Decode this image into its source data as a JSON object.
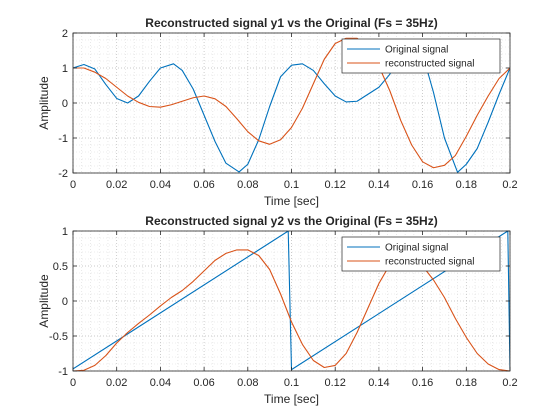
{
  "chart_data": [
    {
      "type": "line",
      "title": "Reconstructed signal y1 vs the Original (Fs = 35Hz)",
      "xlabel": "Time [sec]",
      "ylabel": "Amplitude",
      "xlim": [
        0,
        0.2
      ],
      "ylim": [
        -2,
        2
      ],
      "xticks": [
        0,
        0.02,
        0.04,
        0.06,
        0.08,
        0.1,
        0.12,
        0.14,
        0.16,
        0.18,
        0.2
      ],
      "xtick_labels": [
        "0",
        "0.02",
        "0.04",
        "0.06",
        "0.08",
        "0.1",
        "0.12",
        "0.14",
        "0.16",
        "0.18",
        "0.2"
      ],
      "yticks": [
        -2,
        -1,
        0,
        1,
        2
      ],
      "ytick_labels": [
        "-2",
        "-1",
        "0",
        "1",
        "2"
      ],
      "grid": "on (major + minor, dotted)",
      "legend_location": "top-right",
      "series": [
        {
          "name": "Original signal",
          "color": "#0072BD",
          "x": [
            0,
            0.005,
            0.01,
            0.015,
            0.02,
            0.025,
            0.03,
            0.035,
            0.04,
            0.046,
            0.05,
            0.055,
            0.06,
            0.065,
            0.07,
            0.076,
            0.08,
            0.085,
            0.09,
            0.095,
            0.1,
            0.105,
            0.11,
            0.115,
            0.12,
            0.125,
            0.13,
            0.135,
            0.14,
            0.145,
            0.15,
            0.155,
            0.16,
            0.165,
            0.17,
            0.176,
            0.18,
            0.185,
            0.19,
            0.195,
            0.2
          ],
          "y": [
            1.0,
            1.1,
            0.97,
            0.53,
            0.13,
            0.0,
            0.2,
            0.62,
            1.0,
            1.12,
            0.93,
            0.4,
            -0.35,
            -1.1,
            -1.72,
            -1.97,
            -1.75,
            -1.05,
            -0.1,
            0.75,
            1.08,
            1.12,
            0.93,
            0.55,
            0.2,
            0.03,
            0.05,
            0.25,
            0.45,
            0.82,
            1.6,
            1.78,
            1.4,
            0.3,
            -1.0,
            -1.98,
            -1.75,
            -1.3,
            -0.55,
            0.25,
            1.0
          ]
        },
        {
          "name": "reconstructed signal",
          "color": "#D95319",
          "x": [
            0,
            0.005,
            0.01,
            0.015,
            0.02,
            0.025,
            0.03,
            0.035,
            0.04,
            0.045,
            0.05,
            0.055,
            0.06,
            0.065,
            0.07,
            0.075,
            0.08,
            0.085,
            0.09,
            0.095,
            0.1,
            0.105,
            0.11,
            0.115,
            0.12,
            0.125,
            0.13,
            0.135,
            0.14,
            0.145,
            0.15,
            0.155,
            0.16,
            0.165,
            0.17,
            0.175,
            0.18,
            0.185,
            0.19,
            0.195,
            0.2
          ],
          "y": [
            1.0,
            1.0,
            0.88,
            0.7,
            0.45,
            0.2,
            0.02,
            -0.1,
            -0.12,
            -0.05,
            0.05,
            0.15,
            0.2,
            0.12,
            -0.1,
            -0.45,
            -0.82,
            -1.08,
            -1.18,
            -1.05,
            -0.7,
            -0.15,
            0.55,
            1.25,
            1.7,
            1.85,
            1.85,
            1.6,
            1.05,
            0.35,
            -0.5,
            -1.2,
            -1.68,
            -1.85,
            -1.78,
            -1.5,
            -0.95,
            -0.35,
            0.2,
            0.7,
            1.0
          ]
        }
      ]
    },
    {
      "type": "line",
      "title": "Reconstructed signal y2 vs the Original (Fs = 35Hz)",
      "xlabel": "Time [sec]",
      "ylabel": "Amplitude",
      "xlim": [
        0,
        0.2
      ],
      "ylim": [
        -1,
        1
      ],
      "xticks": [
        0,
        0.02,
        0.04,
        0.06,
        0.08,
        0.1,
        0.12,
        0.14,
        0.16,
        0.18,
        0.2
      ],
      "xtick_labels": [
        "0",
        "0.02",
        "0.04",
        "0.06",
        "0.08",
        "0.1",
        "0.12",
        "0.14",
        "0.16",
        "0.18",
        "0.2"
      ],
      "yticks": [
        -1,
        -0.5,
        0,
        0.5,
        1
      ],
      "ytick_labels": [
        "-1",
        "-0.5",
        "0",
        "0.5",
        "1"
      ],
      "grid": "on (major + minor, dotted)",
      "legend_location": "top-right",
      "series": [
        {
          "name": "Original signal",
          "color": "#0072BD",
          "x": [
            0,
            0.0985,
            0.0985,
            0.1,
            0.199,
            0.199,
            0.2
          ],
          "y": [
            -0.97,
            1.0,
            1.0,
            -0.98,
            1.0,
            1.0,
            -0.98
          ]
        },
        {
          "name": "reconstructed signal",
          "color": "#D95319",
          "x": [
            0,
            0.005,
            0.01,
            0.015,
            0.02,
            0.025,
            0.03,
            0.035,
            0.04,
            0.045,
            0.05,
            0.055,
            0.06,
            0.065,
            0.07,
            0.075,
            0.08,
            0.085,
            0.09,
            0.095,
            0.1,
            0.105,
            0.11,
            0.115,
            0.12,
            0.125,
            0.13,
            0.135,
            0.14,
            0.145,
            0.15,
            0.155,
            0.16,
            0.165,
            0.17,
            0.175,
            0.18,
            0.185,
            0.19,
            0.195,
            0.2
          ],
          "y": [
            -1.0,
            -0.99,
            -0.92,
            -0.78,
            -0.6,
            -0.45,
            -0.32,
            -0.2,
            -0.07,
            0.05,
            0.15,
            0.28,
            0.43,
            0.58,
            0.68,
            0.73,
            0.73,
            0.65,
            0.45,
            0.1,
            -0.3,
            -0.62,
            -0.85,
            -0.95,
            -0.92,
            -0.75,
            -0.45,
            -0.1,
            0.25,
            0.52,
            0.65,
            0.63,
            0.5,
            0.3,
            0.05,
            -0.25,
            -0.52,
            -0.75,
            -0.9,
            -0.98,
            -1.0
          ]
        }
      ]
    }
  ]
}
